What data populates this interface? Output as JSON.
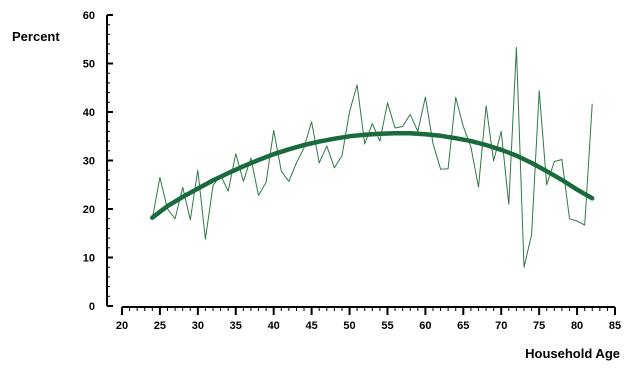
{
  "chart_data": {
    "type": "line",
    "title": "",
    "xlabel": "Household Age",
    "ylabel": "Percent",
    "xlim": [
      20,
      85
    ],
    "ylim": [
      0,
      60
    ],
    "x_ticks": [
      20,
      25,
      30,
      35,
      40,
      45,
      50,
      55,
      60,
      65,
      70,
      75,
      80,
      85
    ],
    "y_ticks": [
      0,
      10,
      20,
      30,
      40,
      50,
      60
    ],
    "grid": false,
    "legend": "none",
    "colors": {
      "raw": "#2f7a45",
      "fit": "#1a6b3c"
    },
    "series": [
      {
        "style": "thin",
        "x": [
          24,
          25,
          26,
          27,
          28,
          29,
          30,
          31,
          32,
          33,
          34,
          35,
          36,
          37,
          38,
          39,
          40,
          41,
          42,
          43,
          44,
          45,
          46,
          47,
          48,
          49,
          50,
          51,
          52,
          53,
          54,
          55,
          56,
          57,
          58,
          59,
          60,
          61,
          62,
          63,
          64,
          65,
          66,
          67,
          68,
          69,
          70,
          71,
          72,
          73,
          74,
          75,
          76,
          77,
          78,
          79,
          80,
          81,
          82
        ],
        "values": [
          18,
          26.5,
          20,
          18,
          24.5,
          17.8,
          28,
          13.8,
          24.8,
          27,
          23.7,
          31.4,
          25.7,
          30.5,
          22.8,
          25.5,
          36.2,
          27.8,
          25.7,
          29.5,
          32.6,
          38,
          29.5,
          33,
          28.5,
          31,
          40,
          45.6,
          33.4,
          37.6,
          34,
          41.9,
          36.7,
          37,
          39.5,
          36,
          43.1,
          33.5,
          28.2,
          28.3,
          43,
          37,
          32.8,
          24.5,
          41.3,
          29.9,
          36,
          21,
          53.3,
          8,
          14.7,
          44.4,
          25,
          29.8,
          30.2,
          18,
          17.5,
          16.7,
          41.6
        ]
      },
      {
        "style": "thick",
        "x": [
          24,
          26,
          28,
          30,
          32,
          34,
          36,
          38,
          40,
          42,
          44,
          46,
          48,
          50,
          52,
          54,
          56,
          58,
          60,
          62,
          64,
          66,
          68,
          70,
          72,
          74,
          76,
          78,
          80,
          82
        ],
        "values": [
          18.2,
          20.6,
          22.5,
          24.2,
          25.9,
          27.4,
          28.8,
          30.1,
          31.3,
          32.3,
          33.2,
          33.9,
          34.5,
          35,
          35.3,
          35.5,
          35.6,
          35.6,
          35.4,
          35.1,
          34.6,
          34,
          33.2,
          32.2,
          31,
          29.5,
          27.8,
          26,
          24,
          22.2
        ]
      }
    ]
  }
}
